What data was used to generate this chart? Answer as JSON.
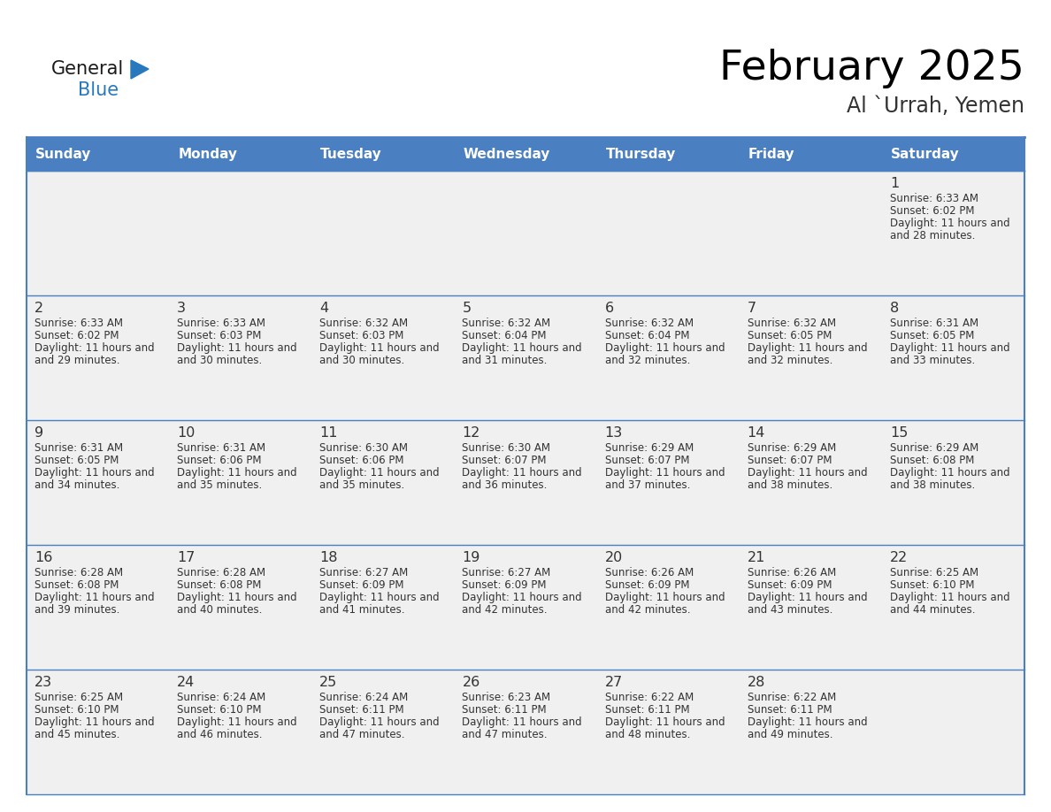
{
  "title": "February 2025",
  "subtitle": "Al `Urrah, Yemen",
  "days_of_week": [
    "Sunday",
    "Monday",
    "Tuesday",
    "Wednesday",
    "Thursday",
    "Friday",
    "Saturday"
  ],
  "header_bg": "#4a7fc1",
  "header_text_color": "#FFFFFF",
  "cell_bg_light": "#F0F0F0",
  "cell_bg_white": "#FFFFFF",
  "border_color": "#4a7fc1",
  "day_number_color": "#333333",
  "text_color": "#333333",
  "logo_general_color": "#1a1a1a",
  "logo_blue_color": "#2878be",
  "calendar_data": [
    [
      null,
      null,
      null,
      null,
      null,
      null,
      {
        "day": 1,
        "sunrise": "6:33 AM",
        "sunset": "6:02 PM",
        "daylight": "11 hours and 28 minutes."
      }
    ],
    [
      {
        "day": 2,
        "sunrise": "6:33 AM",
        "sunset": "6:02 PM",
        "daylight": "11 hours and 29 minutes."
      },
      {
        "day": 3,
        "sunrise": "6:33 AM",
        "sunset": "6:03 PM",
        "daylight": "11 hours and 30 minutes."
      },
      {
        "day": 4,
        "sunrise": "6:32 AM",
        "sunset": "6:03 PM",
        "daylight": "11 hours and 30 minutes."
      },
      {
        "day": 5,
        "sunrise": "6:32 AM",
        "sunset": "6:04 PM",
        "daylight": "11 hours and 31 minutes."
      },
      {
        "day": 6,
        "sunrise": "6:32 AM",
        "sunset": "6:04 PM",
        "daylight": "11 hours and 32 minutes."
      },
      {
        "day": 7,
        "sunrise": "6:32 AM",
        "sunset": "6:05 PM",
        "daylight": "11 hours and 32 minutes."
      },
      {
        "day": 8,
        "sunrise": "6:31 AM",
        "sunset": "6:05 PM",
        "daylight": "11 hours and 33 minutes."
      }
    ],
    [
      {
        "day": 9,
        "sunrise": "6:31 AM",
        "sunset": "6:05 PM",
        "daylight": "11 hours and 34 minutes."
      },
      {
        "day": 10,
        "sunrise": "6:31 AM",
        "sunset": "6:06 PM",
        "daylight": "11 hours and 35 minutes."
      },
      {
        "day": 11,
        "sunrise": "6:30 AM",
        "sunset": "6:06 PM",
        "daylight": "11 hours and 35 minutes."
      },
      {
        "day": 12,
        "sunrise": "6:30 AM",
        "sunset": "6:07 PM",
        "daylight": "11 hours and 36 minutes."
      },
      {
        "day": 13,
        "sunrise": "6:29 AM",
        "sunset": "6:07 PM",
        "daylight": "11 hours and 37 minutes."
      },
      {
        "day": 14,
        "sunrise": "6:29 AM",
        "sunset": "6:07 PM",
        "daylight": "11 hours and 38 minutes."
      },
      {
        "day": 15,
        "sunrise": "6:29 AM",
        "sunset": "6:08 PM",
        "daylight": "11 hours and 38 minutes."
      }
    ],
    [
      {
        "day": 16,
        "sunrise": "6:28 AM",
        "sunset": "6:08 PM",
        "daylight": "11 hours and 39 minutes."
      },
      {
        "day": 17,
        "sunrise": "6:28 AM",
        "sunset": "6:08 PM",
        "daylight": "11 hours and 40 minutes."
      },
      {
        "day": 18,
        "sunrise": "6:27 AM",
        "sunset": "6:09 PM",
        "daylight": "11 hours and 41 minutes."
      },
      {
        "day": 19,
        "sunrise": "6:27 AM",
        "sunset": "6:09 PM",
        "daylight": "11 hours and 42 minutes."
      },
      {
        "day": 20,
        "sunrise": "6:26 AM",
        "sunset": "6:09 PM",
        "daylight": "11 hours and 42 minutes."
      },
      {
        "day": 21,
        "sunrise": "6:26 AM",
        "sunset": "6:09 PM",
        "daylight": "11 hours and 43 minutes."
      },
      {
        "day": 22,
        "sunrise": "6:25 AM",
        "sunset": "6:10 PM",
        "daylight": "11 hours and 44 minutes."
      }
    ],
    [
      {
        "day": 23,
        "sunrise": "6:25 AM",
        "sunset": "6:10 PM",
        "daylight": "11 hours and 45 minutes."
      },
      {
        "day": 24,
        "sunrise": "6:24 AM",
        "sunset": "6:10 PM",
        "daylight": "11 hours and 46 minutes."
      },
      {
        "day": 25,
        "sunrise": "6:24 AM",
        "sunset": "6:11 PM",
        "daylight": "11 hours and 47 minutes."
      },
      {
        "day": 26,
        "sunrise": "6:23 AM",
        "sunset": "6:11 PM",
        "daylight": "11 hours and 47 minutes."
      },
      {
        "day": 27,
        "sunrise": "6:22 AM",
        "sunset": "6:11 PM",
        "daylight": "11 hours and 48 minutes."
      },
      {
        "day": 28,
        "sunrise": "6:22 AM",
        "sunset": "6:11 PM",
        "daylight": "11 hours and 49 minutes."
      },
      null
    ]
  ]
}
